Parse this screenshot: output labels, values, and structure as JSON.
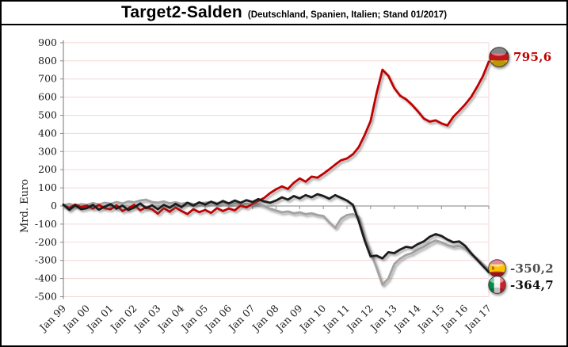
{
  "header": {
    "title": "Target2-Salden",
    "subtitle": "(Deutschland, Spanien, Italien; Stand 01/2017)"
  },
  "y_axis": {
    "title": "Mrd. Euro",
    "min": -500,
    "max": 900,
    "step": 100,
    "tick_labels": [
      "900",
      "800",
      "700",
      "600",
      "500",
      "400",
      "300",
      "200",
      "100",
      "0",
      "-100",
      "-200",
      "-300",
      "-400",
      "-500"
    ]
  },
  "x_axis": {
    "tick_labels": [
      "Jan 99",
      "Jan 00",
      "Jan 01",
      "Jan 02",
      "Jan 03",
      "Jan 04",
      "Jan 05",
      "Jan 06",
      "Jan 07",
      "Jan 08",
      "Jan 09",
      "Jan 10",
      "Jan 11",
      "Jan 12",
      "Jan 13",
      "Jan 14",
      "Jan 15",
      "Jan 16",
      "Jan 17"
    ]
  },
  "legend": {
    "germany": {
      "icon": "germany-flag-icon",
      "value_label": "795,6",
      "color": "#c00000"
    },
    "spain": {
      "icon": "spain-flag-icon",
      "value_label": "-350,2",
      "color": "#4d4d4d"
    },
    "italy": {
      "icon": "italy-flag-icon",
      "value_label": "-364,7",
      "color": "#0d0d0d"
    }
  },
  "colors": {
    "grid": "#f3d7d7",
    "axis": "#8c8c8c",
    "tick_text": "#1c1c1c",
    "germany_line": "#c00000",
    "spain_line": "#a2a2a2",
    "italy_line": "#1a1a1a"
  },
  "chart_data": {
    "type": "line",
    "title": "Target2-Salden (Deutschland, Spanien, Italien; Stand 01/2017)",
    "ylabel": "Mrd. Euro",
    "ylim": [
      -500,
      900
    ],
    "y_step": 100,
    "grid": "horizontal light-pink lines every 100; gray zero axis with yearly ticks",
    "legend_position": "line-end flags with value labels",
    "x_unit": "decimal year, quarterly samples",
    "x_start": 1999.0,
    "x_step": 0.25,
    "x_end": 2017.0,
    "x_tick_labels": [
      "Jan 99",
      "Jan 00",
      "Jan 01",
      "Jan 02",
      "Jan 03",
      "Jan 04",
      "Jan 05",
      "Jan 06",
      "Jan 07",
      "Jan 08",
      "Jan 09",
      "Jan 10",
      "Jan 11",
      "Jan 12",
      "Jan 13",
      "Jan 14",
      "Jan 15",
      "Jan 16",
      "Jan 17"
    ],
    "series": [
      {
        "name": "Spanien",
        "color": "#a2a2a2",
        "end_value": -350.2,
        "end_label": "-350,2",
        "values": [
          4,
          12,
          2,
          10,
          6,
          16,
          8,
          18,
          12,
          22,
          14,
          25,
          20,
          30,
          35,
          22,
          18,
          25,
          15,
          20,
          12,
          18,
          10,
          15,
          18,
          22,
          16,
          20,
          12,
          16,
          8,
          12,
          6,
          10,
          0,
          -15,
          -25,
          -35,
          -30,
          -40,
          -35,
          -45,
          -40,
          -50,
          -55,
          -90,
          -120,
          -70,
          -50,
          -45,
          -60,
          -175,
          -255,
          -340,
          -434,
          -400,
          -320,
          -290,
          -270,
          -260,
          -240,
          -225,
          -205,
          -190,
          -200,
          -215,
          -225,
          -220,
          -235,
          -265,
          -290,
          -320,
          -350.2
        ]
      },
      {
        "name": "Deutschland",
        "color": "#c00000",
        "end_value": 795.6,
        "end_label": "795,6",
        "values": [
          5,
          -12,
          8,
          -6,
          2,
          -15,
          6,
          -12,
          -18,
          4,
          -28,
          -12,
          6,
          -24,
          -8,
          -18,
          -42,
          -12,
          -32,
          -8,
          -28,
          -44,
          -18,
          -34,
          -22,
          -38,
          -12,
          -28,
          -14,
          -24,
          2,
          -8,
          12,
          28,
          45,
          71,
          92,
          108,
          94,
          128,
          152,
          134,
          162,
          156,
          178,
          202,
          228,
          252,
          262,
          285,
          325,
          392,
          468,
          620,
          751,
          718,
          650,
          608,
          588,
          558,
          522,
          482,
          465,
          472,
          455,
          444,
          492,
          525,
          560,
          600,
          655,
          715,
          795.6
        ]
      },
      {
        "name": "Italien",
        "color": "#1a1a1a",
        "end_value": -364.7,
        "end_label": "-364,7",
        "values": [
          8,
          -22,
          4,
          -18,
          -12,
          6,
          -20,
          -4,
          10,
          -15,
          2,
          -22,
          -8,
          14,
          -12,
          4,
          -18,
          6,
          -10,
          12,
          -6,
          18,
          2,
          20,
          8,
          24,
          10,
          28,
          14,
          30,
          18,
          32,
          22,
          38,
          25,
          18,
          30,
          48,
          35,
          55,
          42,
          60,
          48,
          65,
          55,
          40,
          60,
          45,
          30,
          6,
          -84,
          -191,
          -278,
          -274,
          -289,
          -255,
          -260,
          -240,
          -225,
          -230,
          -210,
          -195,
          -170,
          -155,
          -165,
          -185,
          -200,
          -195,
          -220,
          -260,
          -295,
          -330,
          -364.7
        ]
      }
    ]
  }
}
